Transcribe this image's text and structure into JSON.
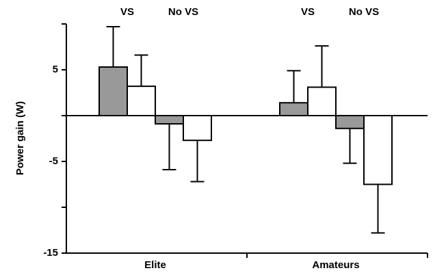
{
  "chart_data": {
    "type": "bar",
    "y_label": "Power gain (W)",
    "categories": [
      "Elite",
      "Amateurs"
    ],
    "annotations": [
      "VS",
      "No VS",
      "VS",
      "No VS"
    ],
    "series": [
      {
        "color": "#999999",
        "values": [
          5.3,
          1.4
        ],
        "errors": [
          4.4,
          3.5
        ]
      },
      {
        "color": "#ffffff",
        "values": [
          3.2,
          3.1
        ],
        "errors": [
          3.4,
          4.5
        ]
      },
      {
        "color": "#999999",
        "values": [
          -0.9,
          -1.4
        ],
        "errors": [
          5.0,
          3.8
        ]
      },
      {
        "color": "#ffffff",
        "values": [
          -2.7,
          -7.5
        ],
        "errors": [
          4.5,
          5.3
        ]
      }
    ],
    "ylim": [
      -15,
      10
    ],
    "yticks": [
      5,
      -5,
      -15
    ],
    "yticks_minor": [
      10,
      0,
      -10
    ]
  }
}
